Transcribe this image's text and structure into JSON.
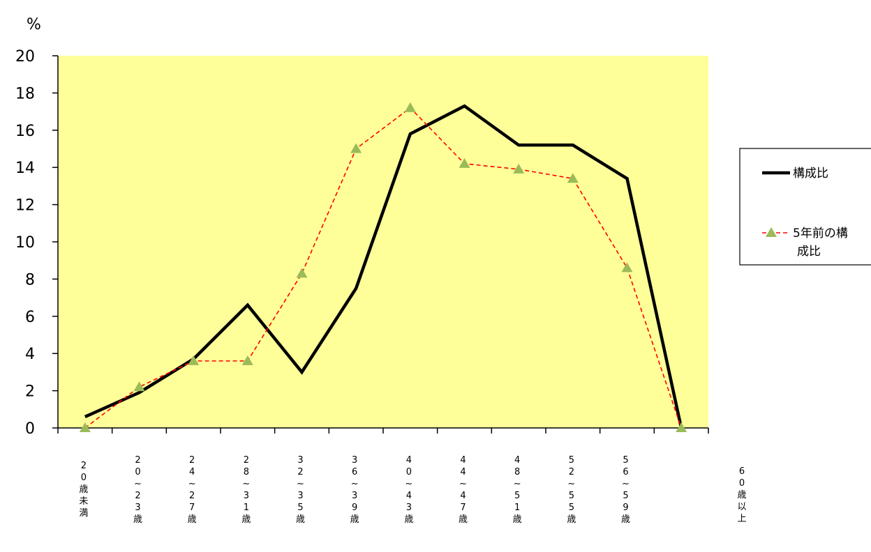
{
  "chart_data": {
    "type": "line",
    "ylabel": "%",
    "ylim": [
      0,
      20
    ],
    "yticks": [
      0,
      2,
      4,
      6,
      8,
      10,
      12,
      14,
      16,
      18,
      20
    ],
    "categories": [
      "20歳未満",
      "20~23歳",
      "24~27歳",
      "28~31歳",
      "32~35歳",
      "36~39歳",
      "40~43歳",
      "44~47歳",
      "48~51歳",
      "52~55歳",
      "56~59歳",
      "60歳以上"
    ],
    "category_labels_vertical": [
      [
        "2",
        "0",
        "歳",
        "未",
        "満"
      ],
      [
        "2",
        "0",
        "~",
        "2",
        "3",
        "歳"
      ],
      [
        "2",
        "4",
        "~",
        "2",
        "7",
        "歳"
      ],
      [
        "2",
        "8",
        "~",
        "3",
        "1",
        "歳"
      ],
      [
        "3",
        "2",
        "~",
        "3",
        "5",
        "歳"
      ],
      [
        "3",
        "6",
        "~",
        "3",
        "9",
        "歳"
      ],
      [
        "4",
        "0",
        "~",
        "4",
        "3",
        "歳"
      ],
      [
        "4",
        "4",
        "~",
        "4",
        "7",
        "歳"
      ],
      [
        "4",
        "8",
        "~",
        "5",
        "1",
        "歳"
      ],
      [
        "5",
        "2",
        "~",
        "5",
        "5",
        "歳"
      ],
      [
        "5",
        "6",
        "~",
        "5",
        "9",
        "歳"
      ],
      [
        "6",
        "0",
        "歳",
        "以",
        "上"
      ]
    ],
    "series": [
      {
        "name": "構成比",
        "values": [
          0.6,
          1.9,
          3.7,
          6.6,
          3.0,
          7.5,
          15.8,
          17.3,
          15.2,
          15.2,
          13.4,
          0.0
        ],
        "color": "#000000",
        "style": "solid"
      },
      {
        "name": "5年前の構成比",
        "values": [
          0.0,
          2.2,
          3.6,
          3.6,
          8.3,
          15.0,
          17.2,
          14.2,
          13.9,
          13.4,
          8.6,
          0.0
        ],
        "color": "#ff0000",
        "marker": "triangle",
        "marker_color": "#9bbb59",
        "style": "dashed"
      }
    ],
    "legend_position": "right",
    "legend_lines": [
      [
        "構成比"
      ],
      [
        "5年前の構",
        "成比"
      ]
    ],
    "plot_background": "#ffff99",
    "grid": false
  }
}
